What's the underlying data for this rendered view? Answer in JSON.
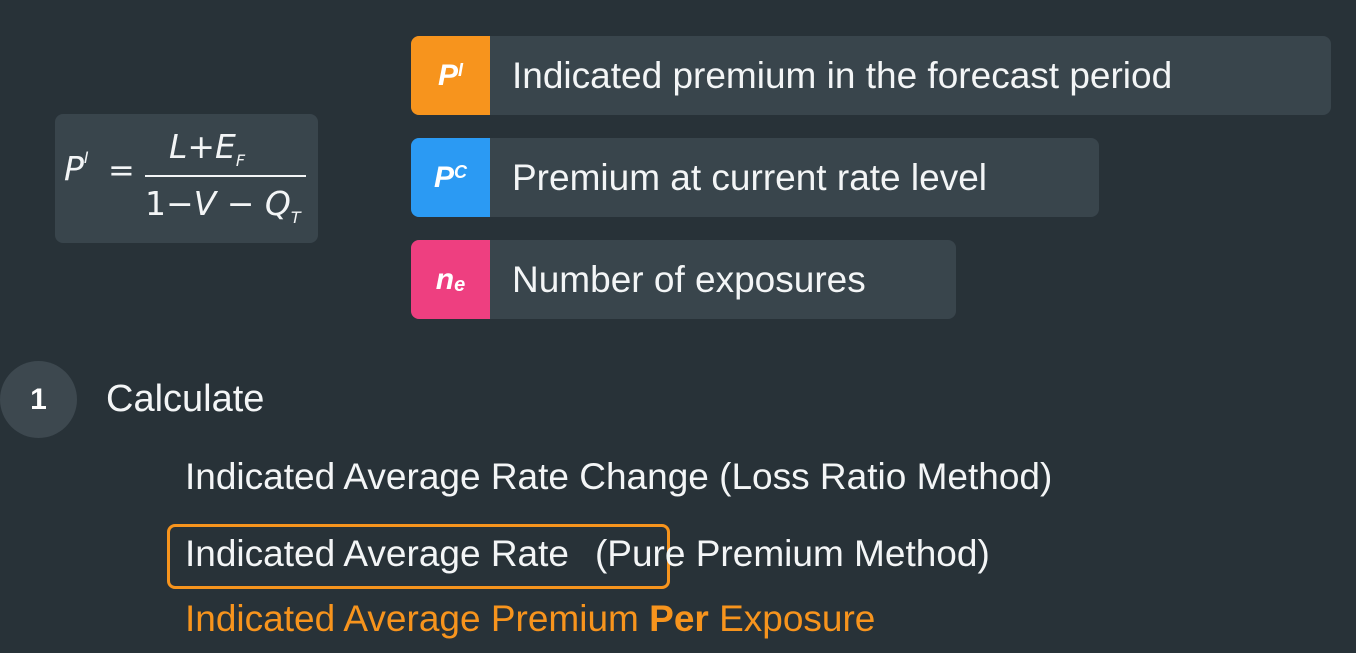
{
  "formula": {
    "lhs": "P",
    "lhs_sup": "I",
    "equals": "=",
    "numerator": "L+E",
    "numerator_sub": "F",
    "denominator_a": "1−",
    "denominator_b": "V",
    "denominator_c": " − Q",
    "denominator_sub": "T"
  },
  "legend": [
    {
      "symbol": "P",
      "symbol_mod": "I",
      "mod_type": "sup",
      "label": "Indicated premium in the forecast period",
      "color": "#f7941d"
    },
    {
      "symbol": "P",
      "symbol_mod": "C",
      "mod_type": "sup",
      "label": "Premium at current rate level",
      "color": "#2b9af3"
    },
    {
      "symbol": "n",
      "symbol_mod": "e",
      "mod_type": "sub",
      "label": "Number of exposures",
      "color": "#ee3f80"
    }
  ],
  "step": {
    "number": "1",
    "label": "Calculate"
  },
  "items": {
    "line1": "Indicated Average Rate Change (Loss Ratio Method)",
    "line2_boxed": "Indicated Average Rate",
    "line2_rest": "(Pure Premium Method)",
    "line3_a": "Indicated Average Premium ",
    "line3_b": "Per",
    "line3_c": " Exposure"
  },
  "colors": {
    "background": "#283238",
    "panel": "#39454c",
    "accent": "#f7941d"
  }
}
